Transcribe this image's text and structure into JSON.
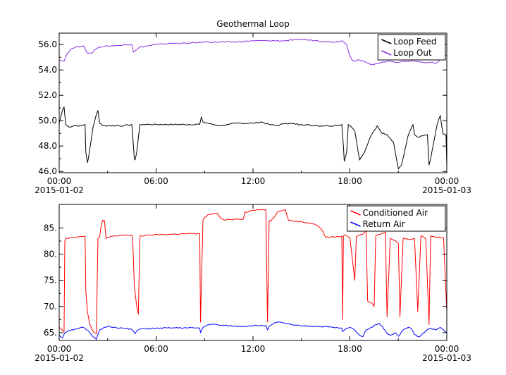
{
  "chart_data": [
    {
      "type": "line",
      "title": "Geothermal Loop",
      "xlabel": "",
      "ylabel": "",
      "x_ticks": [
        "00:00",
        "06:00",
        "12:00",
        "18:00",
        "00:00"
      ],
      "x_tick_dates": [
        "2015-01-02",
        "",
        "",
        "",
        "2015-01-03"
      ],
      "x_range_hours": [
        0,
        24
      ],
      "y_ticks": [
        "46.0",
        "48.0",
        "50.0",
        "52.0",
        "54.0",
        "56.0"
      ],
      "ylim": [
        45.9,
        56.9
      ],
      "grid": false,
      "legend_position": "top-right",
      "series": [
        {
          "name": "Loop Feed",
          "color": "#000000",
          "x": [
            0.0,
            0.2,
            0.3,
            0.4,
            0.6,
            0.9,
            1.4,
            1.6,
            1.65,
            1.75,
            1.8,
            1.9,
            2.1,
            2.3,
            2.4,
            2.5,
            2.7,
            3.0,
            3.5,
            4.0,
            4.5,
            4.6,
            4.65,
            4.7,
            4.8,
            5.0,
            5.2,
            5.6,
            6.0,
            7.0,
            8.0,
            8.7,
            8.8,
            8.9,
            9.5,
            10.0,
            10.5,
            11.0,
            12.0,
            12.5,
            13.0,
            13.5,
            14.0,
            15.0,
            16.0,
            16.5,
            17.0,
            17.5,
            17.6,
            17.65,
            17.8,
            17.9,
            18.0,
            18.1,
            18.3,
            18.6,
            18.9,
            19.3,
            19.7,
            20.0,
            20.3,
            20.5,
            20.7,
            21.0,
            21.2,
            21.6,
            21.9,
            22.0,
            22.2,
            22.5,
            22.8,
            22.9,
            23.0,
            23.4,
            23.6,
            23.75,
            23.85,
            23.95,
            24.0
          ],
          "y": [
            49.8,
            50.8,
            51.1,
            49.7,
            49.5,
            49.6,
            49.6,
            49.7,
            47.5,
            46.7,
            47.0,
            47.8,
            49.5,
            50.5,
            50.8,
            49.8,
            49.6,
            49.6,
            49.6,
            49.6,
            49.7,
            48.0,
            47.0,
            46.9,
            47.5,
            49.7,
            49.7,
            49.7,
            49.7,
            49.7,
            49.7,
            49.7,
            50.3,
            49.9,
            49.7,
            49.6,
            49.7,
            49.8,
            49.8,
            49.9,
            49.7,
            49.6,
            49.8,
            49.7,
            49.6,
            49.6,
            49.6,
            49.7,
            48.0,
            46.8,
            47.5,
            49.7,
            49.6,
            49.5,
            49.2,
            46.9,
            47.5,
            48.8,
            49.6,
            49.0,
            48.9,
            48.6,
            48.3,
            46.2,
            46.5,
            48.8,
            49.7,
            48.9,
            48.7,
            48.8,
            48.9,
            46.5,
            47.0,
            49.7,
            50.4,
            49.0,
            48.9,
            48.9,
            46.4
          ]
        },
        {
          "name": "Loop Out",
          "color": "#8a2be2",
          "x": [
            0.0,
            0.3,
            0.5,
            0.7,
            1.0,
            1.5,
            1.7,
            1.8,
            2.0,
            2.2,
            2.5,
            3.0,
            3.5,
            4.0,
            4.5,
            4.6,
            4.8,
            5.0,
            5.5,
            6.0,
            7.0,
            8.0,
            9.0,
            10.0,
            11.0,
            12.0,
            13.0,
            14.0,
            15.0,
            16.0,
            17.0,
            17.5,
            17.8,
            18.0,
            18.2,
            18.5,
            19.0,
            19.3,
            19.6,
            20.0,
            20.5,
            21.0,
            21.5,
            22.0,
            22.5,
            23.0,
            23.3,
            23.5,
            23.7,
            23.9,
            24.0
          ],
          "y": [
            54.8,
            54.7,
            55.3,
            55.6,
            55.8,
            55.9,
            55.4,
            55.3,
            55.3,
            55.6,
            55.8,
            55.9,
            55.9,
            56.0,
            56.0,
            55.4,
            55.6,
            55.8,
            55.9,
            56.0,
            56.1,
            56.1,
            56.2,
            56.2,
            56.2,
            56.3,
            56.3,
            56.3,
            56.4,
            56.3,
            56.2,
            56.3,
            56.0,
            55.1,
            54.7,
            54.8,
            54.6,
            54.4,
            54.5,
            54.6,
            54.7,
            54.6,
            54.7,
            54.7,
            54.6,
            54.6,
            54.5,
            54.7,
            55.0,
            55.2,
            55.1
          ]
        }
      ]
    },
    {
      "type": "line",
      "title": "",
      "xlabel": "",
      "ylabel": "",
      "x_ticks": [
        "00:00",
        "06:00",
        "12:00",
        "18:00",
        "00:00"
      ],
      "x_tick_dates": [
        "2015-01-02",
        "",
        "",
        "",
        "2015-01-03"
      ],
      "x_range_hours": [
        0,
        24
      ],
      "y_ticks": [
        "65.",
        "70.",
        "75.",
        "80.",
        "85."
      ],
      "ylim": [
        63.5,
        89.5
      ],
      "grid": false,
      "legend_position": "top-right",
      "series": [
        {
          "name": "Conditioned Air",
          "color": "#ff0000",
          "x": [
            0.0,
            0.3,
            0.35,
            0.4,
            0.6,
            0.9,
            1.2,
            1.5,
            1.6,
            1.65,
            1.75,
            1.9,
            2.1,
            2.3,
            2.4,
            2.5,
            2.6,
            2.7,
            2.8,
            2.9,
            3.0,
            3.2,
            3.5,
            4.0,
            4.5,
            4.55,
            4.65,
            4.8,
            4.9,
            5.0,
            5.5,
            6.0,
            7.0,
            8.0,
            8.7,
            8.75,
            8.9,
            9.0,
            9.2,
            9.5,
            9.8,
            10.0,
            10.2,
            10.5,
            11.0,
            11.4,
            11.5,
            11.9,
            12.0,
            12.5,
            12.8,
            12.9,
            13.0,
            13.1,
            13.3,
            13.5,
            13.7,
            13.9,
            14.0,
            14.2,
            14.4,
            14.6,
            15.0,
            15.5,
            16.0,
            16.3,
            16.5,
            17.0,
            17.5,
            17.55,
            17.6,
            17.7,
            18.0,
            18.3,
            18.4,
            18.6,
            18.8,
            19.0,
            19.1,
            19.4,
            19.5,
            19.6,
            19.7,
            20.0,
            20.2,
            20.3,
            20.5,
            20.8,
            21.0,
            21.1,
            21.3,
            21.6,
            21.7,
            22.0,
            22.2,
            22.4,
            22.5,
            22.6,
            22.7,
            22.9,
            23.0,
            23.3,
            23.5,
            23.8,
            24.0
          ],
          "y": [
            66.0,
            65.2,
            82.5,
            83.0,
            83.0,
            83.2,
            83.3,
            83.4,
            83.4,
            73.0,
            69.0,
            66.5,
            65.2,
            64.8,
            83.0,
            83.2,
            85.5,
            86.5,
            86.4,
            83.0,
            83.2,
            83.4,
            83.5,
            83.6,
            83.6,
            83.0,
            74.0,
            70.0,
            68.5,
            83.5,
            83.6,
            83.7,
            83.8,
            83.9,
            83.9,
            67.0,
            86.5,
            87.0,
            87.5,
            87.7,
            87.8,
            86.8,
            86.5,
            86.6,
            86.7,
            86.7,
            88.0,
            88.3,
            88.4,
            88.5,
            88.5,
            67.0,
            86.4,
            86.3,
            87.0,
            88.0,
            88.2,
            88.4,
            88.5,
            86.5,
            86.4,
            86.3,
            86.2,
            86.0,
            85.5,
            84.5,
            83.2,
            83.3,
            83.4,
            67.5,
            83.5,
            83.7,
            83.2,
            75.0,
            83.4,
            83.6,
            83.8,
            84.5,
            71.0,
            70.5,
            70.0,
            83.5,
            83.7,
            84.0,
            84.2,
            68.0,
            83.0,
            82.6,
            82.0,
            68.0,
            83.1,
            82.8,
            82.8,
            83.0,
            69.0,
            83.5,
            83.4,
            83.2,
            83.0,
            66.5,
            83.5,
            83.2,
            83.3,
            83.1,
            69.0
          ]
        },
        {
          "name": "Return Air",
          "color": "#0000ff",
          "x": [
            0.0,
            0.2,
            0.35,
            0.6,
            1.0,
            1.5,
            1.7,
            1.9,
            2.1,
            2.3,
            2.5,
            2.8,
            3.0,
            3.5,
            4.0,
            4.5,
            4.6,
            4.7,
            4.8,
            5.0,
            6.0,
            7.0,
            8.0,
            8.7,
            8.75,
            8.9,
            9.2,
            9.5,
            10.0,
            11.0,
            12.0,
            12.8,
            12.9,
            13.0,
            13.2,
            13.5,
            14.0,
            14.5,
            15.0,
            16.0,
            17.0,
            17.5,
            17.55,
            17.8,
            18.0,
            18.3,
            18.6,
            18.8,
            19.0,
            19.3,
            19.6,
            19.8,
            20.0,
            20.3,
            20.5,
            20.8,
            21.0,
            21.3,
            21.6,
            21.8,
            22.0,
            22.3,
            22.6,
            22.8,
            23.0,
            23.3,
            23.6,
            24.0
          ],
          "y": [
            64.5,
            64.0,
            65.0,
            65.4,
            65.7,
            66.0,
            65.5,
            65.0,
            64.2,
            63.7,
            65.5,
            66.0,
            66.2,
            66.0,
            65.8,
            65.6,
            65.2,
            64.8,
            65.3,
            65.7,
            65.8,
            65.9,
            65.9,
            65.9,
            65.0,
            66.0,
            66.5,
            66.6,
            66.4,
            66.2,
            66.3,
            66.4,
            65.5,
            66.2,
            66.6,
            67.0,
            66.8,
            66.4,
            66.3,
            66.2,
            66.0,
            65.8,
            65.2,
            65.8,
            66.0,
            65.5,
            64.5,
            64.2,
            65.5,
            66.0,
            66.5,
            66.8,
            66.2,
            64.8,
            64.5,
            65.0,
            64.3,
            65.5,
            66.0,
            65.8,
            64.6,
            64.2,
            65.0,
            65.6,
            65.8,
            65.5,
            66.0,
            65.0
          ]
        }
      ]
    }
  ]
}
